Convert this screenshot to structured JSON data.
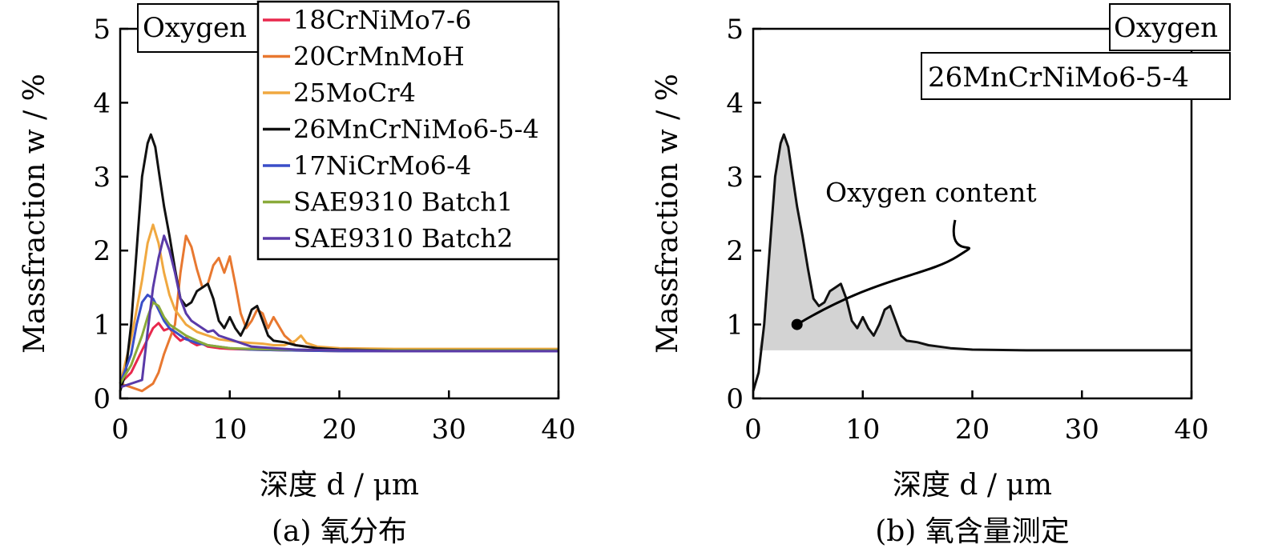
{
  "chart_data": [
    {
      "type": "line",
      "caption": "(a) 氧分布",
      "xlabel": "深度 d / μm",
      "ylabel": "Massfraction w / %",
      "xlim": [
        0,
        40
      ],
      "ylim": [
        0,
        5
      ],
      "xticks": [
        0,
        10,
        20,
        30,
        40
      ],
      "yticks": [
        0,
        1,
        2,
        3,
        4,
        5
      ],
      "tag": "Oxygen",
      "legend_position": "top-right",
      "series": [
        {
          "name": "18CrNiMo7-6",
          "color": "#e8294d",
          "x": [
            0,
            1,
            2,
            3,
            3.5,
            4,
            4.5,
            5,
            5.5,
            6,
            6.5,
            7,
            7.5,
            8,
            9,
            10,
            12,
            15,
            20,
            25,
            30,
            35,
            40
          ],
          "y": [
            0.2,
            0.35,
            0.65,
            0.95,
            1.02,
            0.92,
            0.95,
            0.85,
            0.78,
            0.82,
            0.76,
            0.72,
            0.74,
            0.7,
            0.68,
            0.67,
            0.66,
            0.65,
            0.64,
            0.64,
            0.64,
            0.64,
            0.64
          ]
        },
        {
          "name": "20CrMnMoH",
          "color": "#e87830",
          "x": [
            0,
            1,
            2,
            3,
            3.5,
            4,
            5,
            5.5,
            6,
            6.5,
            7,
            7.5,
            8,
            8.5,
            9,
            9.5,
            10,
            10.5,
            11,
            11.5,
            12,
            12.5,
            13,
            13.5,
            14,
            15,
            16,
            18,
            20,
            25,
            30,
            35,
            40
          ],
          "y": [
            0.2,
            0.15,
            0.1,
            0.2,
            0.35,
            0.6,
            1.0,
            1.7,
            2.2,
            2.05,
            1.75,
            1.5,
            1.55,
            1.8,
            1.9,
            1.7,
            1.92,
            1.55,
            1.15,
            0.95,
            1.05,
            1.2,
            1.15,
            0.95,
            1.1,
            0.85,
            0.72,
            0.68,
            0.66,
            0.65,
            0.65,
            0.65,
            0.65
          ]
        },
        {
          "name": "25MoCr4",
          "color": "#f0a840",
          "x": [
            0,
            1,
            2,
            2.5,
            3,
            3.5,
            4,
            4.5,
            5,
            6,
            7,
            8,
            9,
            10,
            11,
            12,
            13,
            14,
            15,
            16,
            16.5,
            17,
            18,
            20,
            25,
            30,
            35,
            40
          ],
          "y": [
            0.2,
            0.8,
            1.6,
            2.1,
            2.35,
            2.1,
            1.7,
            1.4,
            1.2,
            1.0,
            0.9,
            0.85,
            0.8,
            0.78,
            0.76,
            0.75,
            0.74,
            0.72,
            0.72,
            0.78,
            0.85,
            0.75,
            0.7,
            0.68,
            0.67,
            0.67,
            0.67,
            0.67
          ]
        },
        {
          "name": "26MnCrNiMo6-5-4",
          "color": "#111111",
          "x": [
            0,
            0.5,
            1,
            1.5,
            2,
            2.5,
            2.8,
            3.2,
            3.6,
            4,
            4.5,
            5,
            5.5,
            6,
            6.5,
            7,
            7.5,
            8,
            8.5,
            9,
            9.5,
            10,
            10.5,
            11,
            11.5,
            12,
            12.5,
            13,
            13.5,
            14,
            15,
            16,
            17,
            18,
            20,
            25,
            30,
            35,
            40
          ],
          "y": [
            0.1,
            0.35,
            1.0,
            2.0,
            3.0,
            3.45,
            3.57,
            3.4,
            3.0,
            2.6,
            2.2,
            1.75,
            1.35,
            1.25,
            1.3,
            1.45,
            1.5,
            1.55,
            1.35,
            1.05,
            0.95,
            1.1,
            0.95,
            0.85,
            1.0,
            1.2,
            1.25,
            1.05,
            0.85,
            0.78,
            0.76,
            0.72,
            0.7,
            0.68,
            0.66,
            0.65,
            0.65,
            0.65,
            0.65
          ]
        },
        {
          "name": "17NiCrMo6-4",
          "color": "#3a4ec8",
          "x": [
            0,
            1,
            1.5,
            2,
            2.5,
            3,
            3.5,
            4,
            4.5,
            5,
            5.5,
            6,
            7,
            8,
            9,
            10,
            12,
            15,
            20,
            25,
            30,
            35,
            40
          ],
          "y": [
            0.2,
            0.6,
            1.0,
            1.3,
            1.4,
            1.35,
            1.2,
            1.05,
            0.95,
            0.9,
            0.85,
            0.8,
            0.75,
            0.72,
            0.7,
            0.68,
            0.66,
            0.65,
            0.64,
            0.64,
            0.64,
            0.64,
            0.64
          ]
        },
        {
          "name": "SAE9310 Batch1",
          "color": "#8aaa3a",
          "x": [
            0,
            1,
            2,
            2.5,
            3,
            3.5,
            4,
            4.5,
            5,
            5.5,
            6,
            7,
            8,
            9,
            10,
            12,
            15,
            20,
            25,
            30,
            35,
            40
          ],
          "y": [
            0.2,
            0.45,
            0.85,
            1.1,
            1.3,
            1.25,
            1.1,
            1.0,
            0.95,
            0.9,
            0.85,
            0.78,
            0.72,
            0.7,
            0.68,
            0.67,
            0.66,
            0.65,
            0.65,
            0.65,
            0.65,
            0.65
          ]
        },
        {
          "name": "SAE9310 Batch2",
          "color": "#5a3aa8",
          "x": [
            0,
            1,
            2,
            2.5,
            3,
            3.5,
            4,
            4.5,
            5,
            5.5,
            6,
            6.5,
            7,
            7.5,
            8,
            8.5,
            9,
            10,
            11,
            12,
            14,
            16,
            20,
            25,
            30,
            35,
            40
          ],
          "y": [
            0.15,
            0.2,
            0.25,
            0.9,
            1.5,
            1.9,
            2.2,
            2.0,
            1.7,
            1.35,
            1.15,
            1.05,
            1.0,
            0.95,
            0.9,
            0.92,
            0.85,
            0.8,
            0.75,
            0.7,
            0.68,
            0.66,
            0.65,
            0.64,
            0.64,
            0.64,
            0.64
          ]
        }
      ]
    },
    {
      "type": "area",
      "caption": "(b) 氧含量测定",
      "xlabel": "深度 d / μm",
      "ylabel": "Massfraction w / %",
      "xlim": [
        0,
        40
      ],
      "ylim": [
        0,
        5
      ],
      "xticks": [
        0,
        10,
        20,
        30,
        40
      ],
      "yticks": [
        0,
        1,
        2,
        3,
        4,
        5
      ],
      "tag": "Oxygen",
      "material_label": "26MnCrNiMo6-5-4",
      "annotation": {
        "text": "Oxygen content",
        "point": [
          4,
          1.0
        ]
      },
      "baseline": 0.65,
      "fill_until": 40,
      "series": [
        {
          "name": "26MnCrNiMo6-5-4",
          "color": "#111111",
          "x": [
            0,
            0.5,
            1,
            1.5,
            2,
            2.5,
            2.8,
            3.2,
            3.6,
            4,
            4.5,
            5,
            5.5,
            6,
            6.5,
            7,
            7.5,
            8,
            8.5,
            9,
            9.5,
            10,
            10.5,
            11,
            11.5,
            12,
            12.5,
            13,
            13.5,
            14,
            15,
            16,
            17,
            18,
            20,
            25,
            30,
            35,
            40
          ],
          "y": [
            0.1,
            0.35,
            1.0,
            2.0,
            3.0,
            3.45,
            3.57,
            3.4,
            3.0,
            2.6,
            2.2,
            1.75,
            1.35,
            1.25,
            1.3,
            1.45,
            1.5,
            1.55,
            1.35,
            1.05,
            0.95,
            1.1,
            0.95,
            0.85,
            1.0,
            1.2,
            1.25,
            1.05,
            0.85,
            0.78,
            0.76,
            0.72,
            0.7,
            0.68,
            0.66,
            0.65,
            0.65,
            0.65,
            0.65
          ]
        }
      ]
    }
  ]
}
